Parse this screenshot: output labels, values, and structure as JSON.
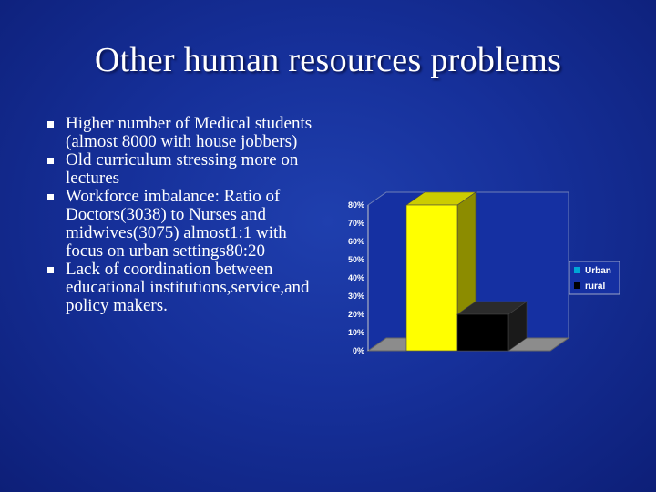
{
  "slide": {
    "title": "Other human resources problems",
    "bullets": [
      "Higher number of Medical students (almost 8000 with house jobbers)",
      "Old curriculum stressing more on lectures",
      "Workforce imbalance: Ratio of Doctors(3038) to Nurses and midwives(3075) almost1:1 with focus on urban settings80:20",
      "Lack of coordination between educational institutions,service,and policy makers."
    ]
  },
  "chart_data": {
    "type": "bar",
    "title": "",
    "xlabel": "",
    "ylabel": "",
    "ylim": [
      0,
      80
    ],
    "yticks": [
      "0%",
      "10%",
      "20%",
      "30%",
      "40%",
      "50%",
      "60%",
      "70%",
      "80%"
    ],
    "categories": [
      ""
    ],
    "series": [
      {
        "name": "Urban",
        "values": [
          80
        ],
        "color": "#ffff00"
      },
      {
        "name": "rural",
        "values": [
          20
        ],
        "color": "#000000"
      }
    ],
    "grid": false,
    "legend": "right",
    "three_d": true
  }
}
